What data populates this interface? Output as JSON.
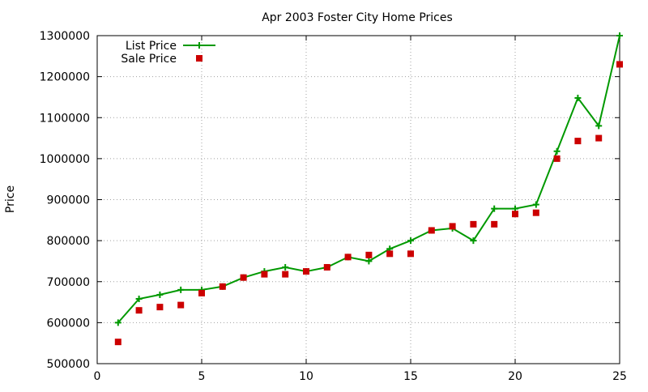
{
  "chart_data": {
    "type": "line",
    "title": "Apr 2003 Foster City Home Prices",
    "xlabel": "",
    "ylabel": "Price",
    "xlim": [
      0,
      25
    ],
    "ylim": [
      500000,
      1300000
    ],
    "x_ticks": [
      0,
      5,
      10,
      15,
      20,
      25
    ],
    "y_ticks": [
      500000,
      600000,
      700000,
      800000,
      900000,
      1000000,
      1100000,
      1200000,
      1300000
    ],
    "grid": true,
    "legend_position": "top-left",
    "series": [
      {
        "name": "List Price",
        "style": "line-with-plus-markers",
        "color": "#009900",
        "x": [
          1,
          2,
          3,
          4,
          5,
          6,
          7,
          8,
          9,
          10,
          11,
          12,
          13,
          14,
          15,
          16,
          17,
          18,
          19,
          20,
          21,
          22,
          23,
          24,
          25
        ],
        "values": [
          600000,
          658000,
          668000,
          680000,
          680000,
          688000,
          710000,
          725000,
          735000,
          725000,
          735000,
          760000,
          750000,
          780000,
          800000,
          825000,
          830000,
          800000,
          878000,
          878000,
          888000,
          1018000,
          1148000,
          1080000,
          1300000
        ]
      },
      {
        "name": "Sale Price",
        "style": "square-markers",
        "color": "#cc0000",
        "x": [
          1,
          2,
          3,
          4,
          5,
          6,
          7,
          8,
          9,
          10,
          11,
          12,
          13,
          14,
          15,
          16,
          17,
          18,
          19,
          20,
          21,
          22,
          23,
          24,
          25
        ],
        "values": [
          553000,
          630000,
          638000,
          643000,
          672000,
          688000,
          710000,
          718000,
          718000,
          725000,
          735000,
          760000,
          765000,
          768000,
          768000,
          825000,
          835000,
          840000,
          840000,
          865000,
          868000,
          1000000,
          1043000,
          1050000,
          1230000
        ]
      }
    ]
  }
}
